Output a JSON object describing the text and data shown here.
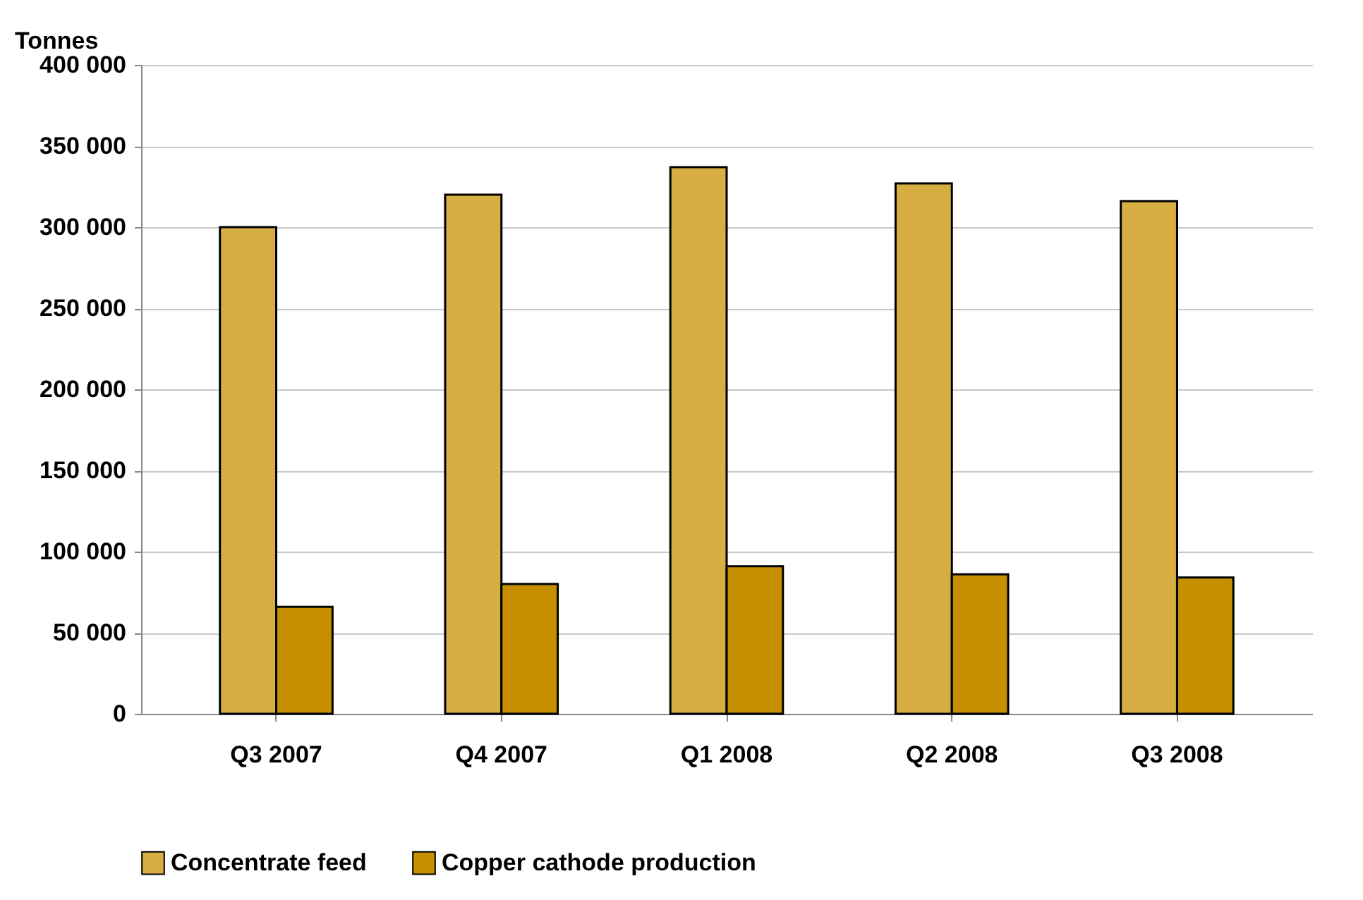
{
  "chart_data": {
    "type": "bar",
    "ylabel": "Tonnes",
    "categories": [
      "Q3 2007",
      "Q4 2007",
      "Q1 2008",
      "Q2 2008",
      "Q3 2008"
    ],
    "series": [
      {
        "name": "Concentrate feed",
        "color": "#d6ae42",
        "values": [
          300000,
          320000,
          337000,
          327000,
          316000
        ]
      },
      {
        "name": "Copper cathode production",
        "color": "#c68f00",
        "values": [
          66000,
          80000,
          91000,
          86000,
          84000
        ]
      }
    ],
    "ylim": [
      0,
      400000
    ],
    "yticks": [
      {
        "value": 0,
        "label": "0"
      },
      {
        "value": 50000,
        "label": "50 000"
      },
      {
        "value": 100000,
        "label": "100 000"
      },
      {
        "value": 150000,
        "label": "150 000"
      },
      {
        "value": 200000,
        "label": "200 000"
      },
      {
        "value": 250000,
        "label": "250 000"
      },
      {
        "value": 300000,
        "label": "300 000"
      },
      {
        "value": 350000,
        "label": "350 000"
      },
      {
        "value": 400000,
        "label": "400 000"
      }
    ],
    "grid": "y",
    "legend": "bottom"
  }
}
